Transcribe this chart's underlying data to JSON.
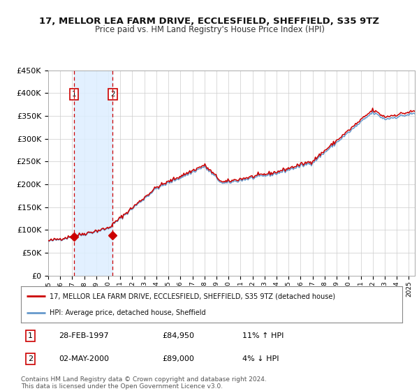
{
  "title": "17, MELLOR LEA FARM DRIVE, ECCLESFIELD, SHEFFIELD, S35 9TZ",
  "subtitle": "Price paid vs. HM Land Registry's House Price Index (HPI)",
  "legend_line1": "17, MELLOR LEA FARM DRIVE, ECCLESFIELD, SHEFFIELD, S35 9TZ (detached house)",
  "legend_line2": "HPI: Average price, detached house, Sheffield",
  "sale1_date": "28-FEB-1997",
  "sale1_price": "£84,950",
  "sale1_hpi": "11% ↑ HPI",
  "sale2_date": "02-MAY-2000",
  "sale2_price": "£89,000",
  "sale2_hpi": "4% ↓ HPI",
  "footer": "Contains HM Land Registry data © Crown copyright and database right 2024.\nThis data is licensed under the Open Government Licence v3.0.",
  "red_color": "#cc0000",
  "blue_color": "#6699cc",
  "bg_color": "#ffffff",
  "grid_color": "#cccccc",
  "highlight_color": "#ddeeff",
  "ylim": [
    0,
    450000
  ],
  "yticks": [
    0,
    50000,
    100000,
    150000,
    200000,
    250000,
    300000,
    350000,
    400000,
    450000
  ],
  "sale1_year": 1997.15,
  "sale2_year": 2000.37,
  "sale1_value": 84950,
  "sale2_value": 89000,
  "xmin": 1995,
  "xmax": 2025.5
}
